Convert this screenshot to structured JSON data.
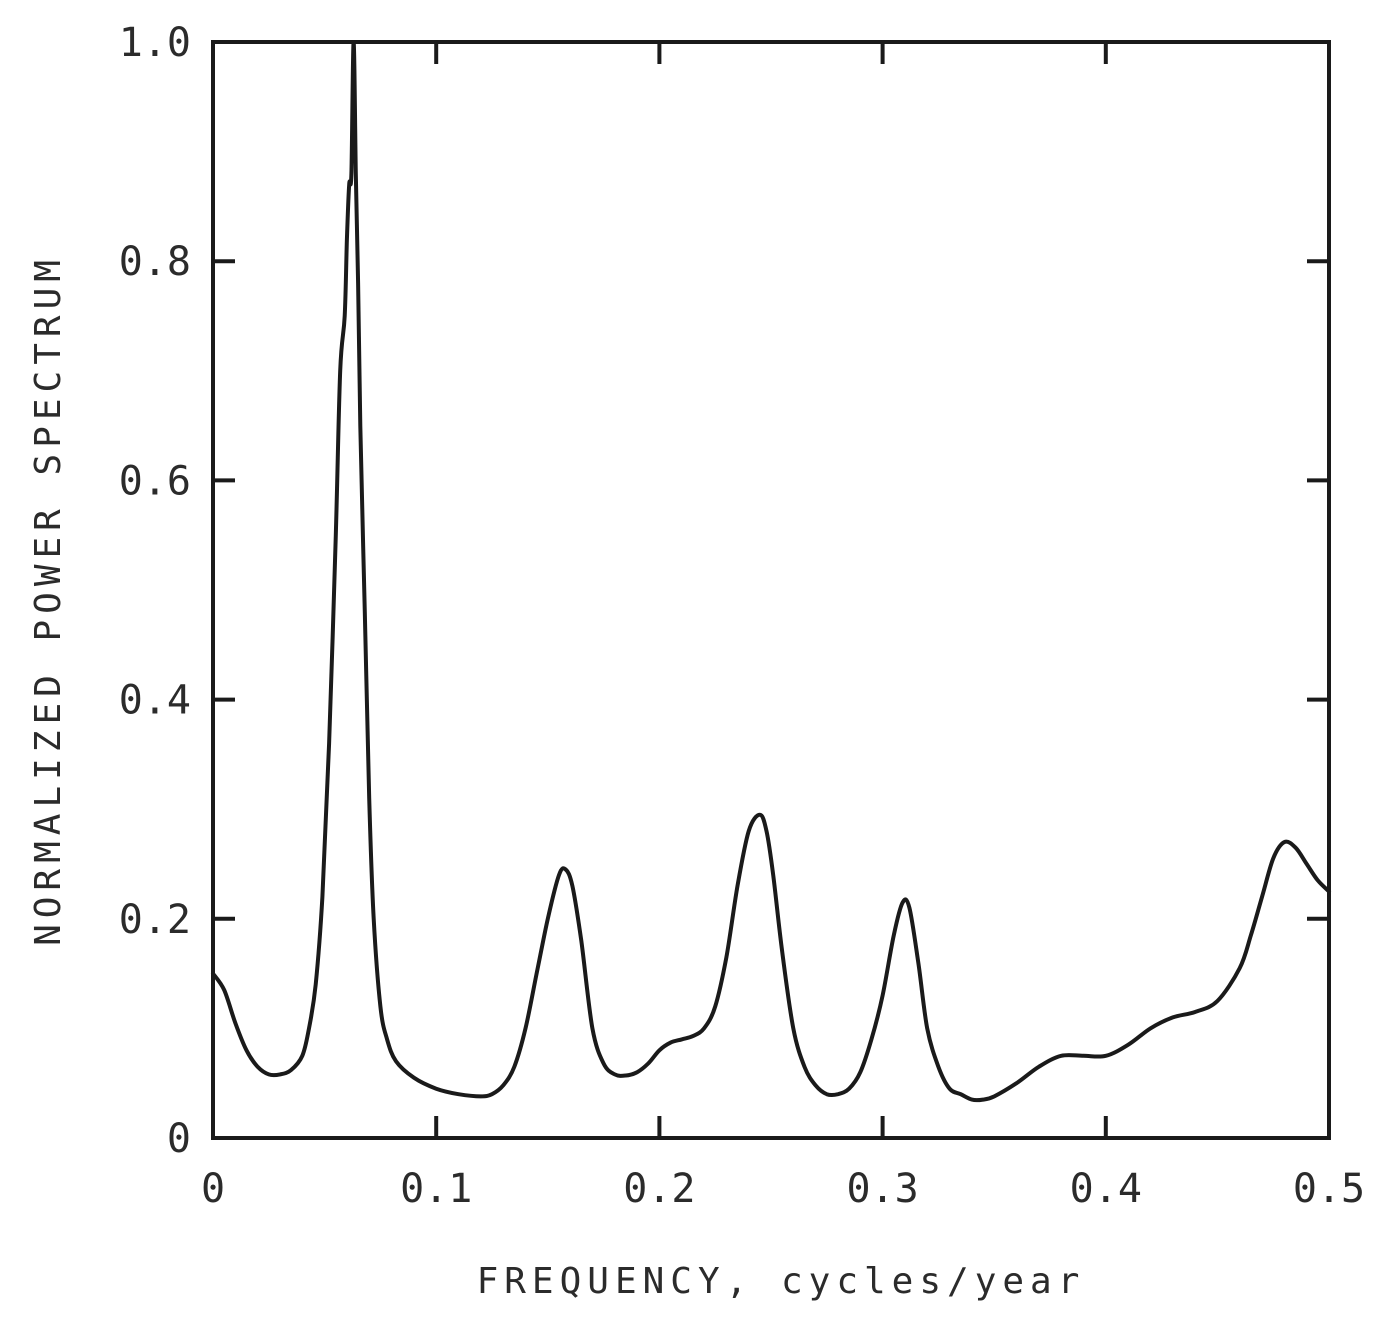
{
  "chart_data": {
    "type": "line",
    "title": "",
    "xlabel": "FREQUENCY, cycles/year",
    "ylabel": "NORMALIZED POWER SPECTRUM",
    "xlim": [
      0,
      0.5
    ],
    "ylim": [
      0,
      1.0
    ],
    "grid": false,
    "x_ticks": [
      0,
      0.1,
      0.2,
      0.3,
      0.4,
      0.5
    ],
    "x_tick_labels": [
      "0",
      "0.1",
      "0.2",
      "0.3",
      "0.4",
      "0.5"
    ],
    "y_ticks": [
      0,
      0.2,
      0.4,
      0.6,
      0.8,
      1.0
    ],
    "y_tick_labels": [
      "0",
      "0.2",
      "0.4",
      "0.6",
      "0.8",
      "1.0"
    ],
    "colors": {
      "line": "#1a1a1a",
      "axis": "#1a1a1a"
    },
    "series": [
      {
        "x": [
          0,
          0.005,
          0.01,
          0.015,
          0.02,
          0.025,
          0.03,
          0.035,
          0.04,
          0.043,
          0.046,
          0.049,
          0.052,
          0.055,
          0.057,
          0.059,
          0.06,
          0.061,
          0.062,
          0.063,
          0.064,
          0.065,
          0.066,
          0.068,
          0.07,
          0.072,
          0.075,
          0.078,
          0.082,
          0.09,
          0.1,
          0.11,
          0.12,
          0.125,
          0.13,
          0.135,
          0.14,
          0.145,
          0.15,
          0.155,
          0.158,
          0.161,
          0.165,
          0.17,
          0.175,
          0.18,
          0.185,
          0.19,
          0.195,
          0.2,
          0.205,
          0.21,
          0.215,
          0.22,
          0.225,
          0.23,
          0.235,
          0.24,
          0.245,
          0.248,
          0.251,
          0.255,
          0.26,
          0.265,
          0.27,
          0.275,
          0.28,
          0.285,
          0.29,
          0.295,
          0.3,
          0.305,
          0.309,
          0.312,
          0.316,
          0.32,
          0.325,
          0.33,
          0.335,
          0.34,
          0.345,
          0.35,
          0.36,
          0.37,
          0.38,
          0.39,
          0.4,
          0.41,
          0.42,
          0.43,
          0.44,
          0.45,
          0.46,
          0.465,
          0.47,
          0.475,
          0.48,
          0.485,
          0.49,
          0.495,
          0.5
        ],
        "y": [
          0.15,
          0.135,
          0.105,
          0.08,
          0.065,
          0.058,
          0.058,
          0.062,
          0.075,
          0.1,
          0.14,
          0.22,
          0.36,
          0.55,
          0.7,
          0.75,
          0.82,
          0.87,
          0.88,
          1.0,
          0.88,
          0.78,
          0.65,
          0.48,
          0.31,
          0.2,
          0.12,
          0.09,
          0.07,
          0.055,
          0.045,
          0.04,
          0.038,
          0.04,
          0.048,
          0.065,
          0.1,
          0.15,
          0.2,
          0.24,
          0.245,
          0.23,
          0.18,
          0.1,
          0.068,
          0.058,
          0.057,
          0.06,
          0.068,
          0.08,
          0.087,
          0.09,
          0.093,
          0.1,
          0.12,
          0.165,
          0.23,
          0.28,
          0.295,
          0.28,
          0.24,
          0.17,
          0.1,
          0.065,
          0.048,
          0.04,
          0.04,
          0.045,
          0.06,
          0.09,
          0.13,
          0.185,
          0.215,
          0.21,
          0.16,
          0.1,
          0.065,
          0.045,
          0.04,
          0.035,
          0.035,
          0.038,
          0.05,
          0.065,
          0.075,
          0.075,
          0.075,
          0.085,
          0.1,
          0.11,
          0.115,
          0.125,
          0.155,
          0.185,
          0.22,
          0.255,
          0.27,
          0.265,
          0.25,
          0.235,
          0.225
        ]
      }
    ]
  }
}
